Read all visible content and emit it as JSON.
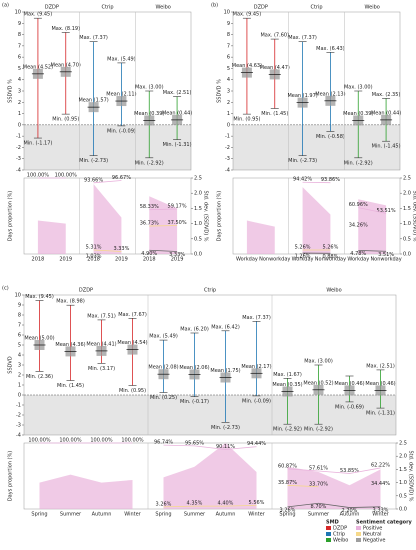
{
  "chart_data": [
    {
      "type": "box",
      "label": "(a)",
      "ylabel": "SSDVD %",
      "ylim": [
        -4,
        10
      ],
      "yticks": [
        -4,
        -3,
        -2,
        -1,
        0,
        1,
        2,
        3,
        4,
        5,
        6,
        7,
        8,
        9,
        10
      ],
      "groups": [
        {
          "name": "DZDP",
          "color": "#d62728",
          "categories": [
            "2018",
            "2019"
          ],
          "max": [
            9.45,
            8.19
          ],
          "mean": [
            4.52,
            4.7
          ],
          "min": [
            -1.17,
            0.95
          ],
          "max_labels": [
            "Max. (9.45)",
            "Max. (8.19)"
          ],
          "mean_labels": [
            "Mean (4.52)",
            "Mean (4.70)"
          ],
          "min_labels": [
            "Min. (-1.17)",
            "Min. (0.95)"
          ]
        },
        {
          "name": "Ctrip",
          "color": "#1f77b4",
          "categories": [
            "2018",
            "2019"
          ],
          "max": [
            7.37,
            5.49
          ],
          "mean": [
            1.57,
            2.11
          ],
          "min": [
            -2.73,
            -0.09
          ],
          "max_labels": [
            "Max. (7.37)",
            "Max. (5.49)"
          ],
          "mean_labels": [
            "Mean (1.57)",
            "Mean (2.11)"
          ],
          "min_labels": [
            "Min. (-2.73)",
            "Min. (-0.09)"
          ]
        },
        {
          "name": "Weibo",
          "color": "#2ca02c",
          "categories": [
            "2018",
            "2019"
          ],
          "max": [
            3.0,
            2.51
          ],
          "mean": [
            0.39,
            0.44
          ],
          "min": [
            -2.92,
            -1.31
          ],
          "max_labels": [
            "Max. (3.00)",
            "Max. (2.51)"
          ],
          "mean_labels": [
            "Mean (0.39)",
            "Mean (0.44)"
          ],
          "min_labels": [
            "Min. (-2.92)",
            "Min. (-1.31)"
          ]
        }
      ],
      "bottom": {
        "type": "area",
        "ylabel": "Days proportion (%)",
        "y2label": "Std. dev. (SSDVD) %",
        "ylim": [
          0,
          100
        ],
        "y2lim": [
          0,
          2.5
        ],
        "y2ticks": [
          {
            "value": 0,
            "label": "0.0"
          },
          0.5,
          {
            "value": 1,
            "label": "1.0"
          },
          1.5,
          {
            "value": 2,
            "label": "2.0"
          },
          2.5
        ],
        "groups": [
          {
            "std": [
              1.1,
              1.0
            ],
            "positive": {
              "values": [
                100,
                100
              ],
              "value_labels": [
                "100.00%",
                "100.00%"
              ]
            },
            "neutral": {
              "values": [
                null,
                null
              ],
              "value_labels": [
                null,
                null
              ]
            },
            "negative": {
              "values": [
                null,
                null
              ],
              "value_labels": [
                null,
                null
              ]
            }
          },
          {
            "std": [
              2.3,
              1.2
            ],
            "positive": {
              "values": [
                93.66,
                96.67
              ],
              "value_labels": [
                "93.66%",
                "96.67%"
              ]
            },
            "neutral": {
              "values": [
                5.31,
                3.33
              ],
              "value_labels": [
                "5.31%",
                "3.33%"
              ]
            },
            "negative": {
              "values": [
                1.03,
                null
              ],
              "value_labels": [
                "1.03%",
                null
              ]
            }
          },
          {
            "std": [
              1.9,
              1.5
            ],
            "positive": {
              "values": [
                58.33,
                59.17
              ],
              "value_labels": [
                "58.33%",
                "59.17%"
              ]
            },
            "neutral": {
              "values": [
                36.73,
                37.5
              ],
              "value_labels": [
                "36.73%",
                "37.50%"
              ]
            },
            "negative": {
              "values": [
                4.9,
                3.33
              ],
              "value_labels": [
                "4.90%",
                "3.33%"
              ]
            }
          }
        ]
      }
    },
    {
      "type": "box",
      "label": "(b)",
      "ylabel": "SSDVD %",
      "ylim": [
        -4,
        10
      ],
      "yticks": [
        -4,
        -3,
        -2,
        -1,
        0,
        1,
        2,
        3,
        4,
        5,
        6,
        7,
        8,
        9,
        10
      ],
      "groups": [
        {
          "name": "DZDP",
          "color": "#d62728",
          "categories": [
            "Workday",
            "Nonworkday"
          ],
          "max": [
            9.45,
            7.6
          ],
          "mean": [
            4.63,
            4.47
          ],
          "min": [
            0.95,
            1.45
          ],
          "max_labels": [
            "Max. (9.45)",
            "Max. (7.60)"
          ],
          "mean_labels": [
            "Mean (4.63)",
            "Mean (4.47)"
          ],
          "min_labels": [
            "Min. (0.95)",
            "Min. (1.45)"
          ]
        },
        {
          "name": "Ctrip",
          "color": "#1f77b4",
          "categories": [
            "Workday",
            "Nonworkday"
          ],
          "max": [
            7.37,
            6.43
          ],
          "mean": [
            1.97,
            2.13
          ],
          "min": [
            -2.73,
            -0.58
          ],
          "max_labels": [
            "Max. (7.37)",
            "Max. (6.43)"
          ],
          "mean_labels": [
            "Mean (1.97)",
            "Mean (2.13)"
          ],
          "min_labels": [
            "Min. (-2.73)",
            "Min. (-0.58)"
          ]
        },
        {
          "name": "Weibo",
          "color": "#2ca02c",
          "categories": [
            "Workday",
            "Nonworkday"
          ],
          "max": [
            3.0,
            2.35
          ],
          "mean": [
            0.39,
            0.44
          ],
          "min": [
            -2.92,
            -1.45
          ],
          "max_labels": [
            "Max. (3.00)",
            "Max. (2.35)"
          ],
          "mean_labels": [
            "Mean (0.39)",
            "Mean (0.44)"
          ],
          "min_labels": [
            "Min. (-2.92)",
            "Min. (-1.45)"
          ]
        }
      ],
      "bottom": {
        "type": "area",
        "ylabel": "Days proportion (%)",
        "y2label": "Std. dev. (SSDVD) %",
        "ylim": [
          0,
          100
        ],
        "y2lim": [
          0,
          2.5
        ],
        "y2ticks": [
          {
            "value": 0,
            "label": "0.0"
          },
          0.5,
          {
            "value": 1,
            "label": "1.0"
          },
          1.5,
          {
            "value": 2,
            "label": "2.0"
          },
          2.5
        ],
        "groups": [
          {
            "std": [
              1.1,
              0.9
            ],
            "positive": {
              "values": [
                null,
                null
              ],
              "value_labels": [
                null,
                null
              ]
            },
            "neutral": {
              "values": [
                null,
                null
              ],
              "value_labels": [
                null,
                null
              ]
            },
            "negative": {
              "values": [
                null,
                null
              ],
              "value_labels": [
                null,
                null
              ]
            }
          },
          {
            "std": [
              2.2,
              1.3
            ],
            "positive": {
              "values": [
                94.42,
                93.86
              ],
              "value_labels": [
                "94.42%",
                "93.86%"
              ]
            },
            "neutral": {
              "values": [
                5.26,
                5.26
              ],
              "value_labels": [
                "5.26%",
                "5.26%"
              ]
            },
            "negative": {
              "values": [
                1.26,
                0.88
              ],
              "value_labels": [
                "1.26%",
                "0.88%"
              ]
            }
          },
          {
            "std": [
              1.8,
              1.6
            ],
            "positive": {
              "values": [
                60.96,
                53.51
              ],
              "value_labels": [
                "60.96%",
                "53.51%"
              ]
            },
            "neutral": {
              "values": [
                34.26,
                null
              ],
              "value_labels": [
                "34.26%",
                null
              ]
            },
            "negative": {
              "values": [
                4.78,
                3.51
              ],
              "value_labels": [
                "4.78%",
                "3.51%"
              ]
            }
          }
        ]
      }
    },
    {
      "type": "box",
      "label": "(c)",
      "ylabel": "SSDVD",
      "ylim": [
        -4,
        10
      ],
      "yticks": [
        -4,
        -3,
        -2,
        -1,
        0,
        1,
        2,
        3,
        4,
        5,
        6,
        7,
        8,
        9,
        10
      ],
      "groups": [
        {
          "name": "DZDP",
          "color": "#d62728",
          "categories": [
            "Spring",
            "Summer",
            "Autumn",
            "Winter"
          ],
          "max": [
            9.45,
            8.98,
            7.51,
            7.67
          ],
          "mean": [
            5.0,
            4.36,
            4.41,
            4.54
          ],
          "min": [
            2.36,
            1.45,
            3.17,
            0.95
          ],
          "max_labels": [
            "Max. (9.45)",
            "Max. (8.98)",
            "Max. (7.51)",
            "Max. (7.67)"
          ],
          "mean_labels": [
            "Mean (5.00)",
            "Mean (4.36)",
            "Mean (4.41)",
            "Mean (4.54)"
          ],
          "min_labels": [
            "Min. (2.36)",
            "Min. (1.45)",
            "Min. (3.17)",
            "Min. (0.95)"
          ]
        },
        {
          "name": "Ctrip",
          "color": "#1f77b4",
          "categories": [
            "Spring",
            "Summer",
            "Autumn",
            "Winter"
          ],
          "max": [
            5.49,
            6.2,
            6.42,
            7.37
          ],
          "mean": [
            2.08,
            2.06,
            1.75,
            2.17
          ],
          "min": [
            0.25,
            -0.17,
            -2.73,
            -0.09
          ],
          "max_labels": [
            "Max. (5.49)",
            "Max. (6.20)",
            "Max. (6.42)",
            "Max. (7.37)"
          ],
          "mean_labels": [
            "Mean (2.08)",
            "Mean (2.06)",
            "Mean (1.75)",
            "Mean (2.17)"
          ],
          "min_labels": [
            "Min. (0.25)",
            "Min. (-0.17)",
            "Min. (-2.73)",
            "Min. (-0.09)"
          ]
        },
        {
          "name": "Weibo",
          "color": "#2ca02c",
          "categories": [
            "Spring",
            "Summer",
            "Autumn",
            "Winter"
          ],
          "max": [
            1.67,
            3.0,
            1.9,
            2.51
          ],
          "mean": [
            0.35,
            0.52,
            0.46,
            0.46
          ],
          "min": [
            -2.92,
            -2.92,
            -0.69,
            -1.31
          ],
          "max_labels": [
            "Max. (1.67)",
            "Max. (3.00)",
            null,
            "Max. (2.51)"
          ],
          "mean_labels": [
            "Mean (0.35)",
            "Mean (0.52)",
            "Mean (0.46)",
            "Mean (0.46)"
          ],
          "min_labels": [
            "Min. (-2.92)",
            "Min. (-2.92)",
            "Min. (-0.69)",
            "Min. (-1.31)"
          ]
        }
      ],
      "bottom": {
        "type": "area",
        "ylabel": "Days proportion (%)",
        "y2label": "Std. dev. (SSDVD) %",
        "ylim": [
          0,
          100
        ],
        "y2lim": [
          0,
          2.5
        ],
        "y2ticks": [
          {
            "value": 0,
            "label": "0.0"
          },
          0.5,
          {
            "value": 1,
            "label": "1.0"
          },
          1.5,
          {
            "value": 2,
            "label": "2.0"
          },
          2.5
        ],
        "groups": [
          {
            "std": [
              1.0,
              1.3,
              1.0,
              1.1
            ],
            "positive": {
              "values": [
                100,
                100,
                100,
                100
              ],
              "value_labels": [
                "100.00%",
                "100.00%",
                "100.00%",
                "100.00%"
              ]
            },
            "neutral": {
              "values": [
                null,
                null,
                null,
                null
              ],
              "value_labels": [
                null,
                null,
                null,
                null
              ]
            },
            "negative": {
              "values": [
                null,
                null,
                null,
                null
              ],
              "value_labels": [
                null,
                null,
                null,
                null
              ]
            }
          },
          {
            "std": [
              1.2,
              1.6,
              2.5,
              1.4
            ],
            "positive": {
              "values": [
                96.74,
                95.65,
                90.11,
                94.44
              ],
              "value_labels": [
                "96.74%",
                "95.65%",
                "90.11%",
                "94.44%"
              ]
            },
            "neutral": {
              "values": [
                3.26,
                4.35,
                4.4,
                5.56
              ],
              "value_labels": [
                "3.26%",
                "4.35%",
                "4.40%",
                "5.56%"
              ]
            },
            "negative": {
              "values": [
                null,
                null,
                null,
                null
              ],
              "value_labels": [
                null,
                null,
                null,
                null
              ]
            }
          },
          {
            "std": [
              1.6,
              1.4,
              0.9,
              1.5
            ],
            "positive": {
              "values": [
                60.87,
                57.61,
                53.85,
                62.22
              ],
              "value_labels": [
                "60.87%",
                "57.61%",
                "53.85%",
                "62.22%"
              ]
            },
            "neutral": {
              "values": [
                35.87,
                33.7,
                null,
                34.44
              ],
              "value_labels": [
                "35.87%",
                "33.70%",
                null,
                "34.44%"
              ]
            },
            "negative": {
              "values": [
                3.26,
                8.7,
                2.2,
                3.33
              ],
              "value_labels": [
                "3.26%",
                "8.70%",
                "2.20%",
                "3.33%"
              ]
            }
          }
        ]
      }
    }
  ],
  "legend": {
    "smd_title": "SMD",
    "sentiment_title": "Sentiment category",
    "sentiments": [
      {
        "name": "Positive",
        "color": "#e9b3dc"
      },
      {
        "name": "Neutral",
        "color": "#f6d98a"
      },
      {
        "name": "Negative",
        "color": "#9e9e9e"
      }
    ]
  }
}
